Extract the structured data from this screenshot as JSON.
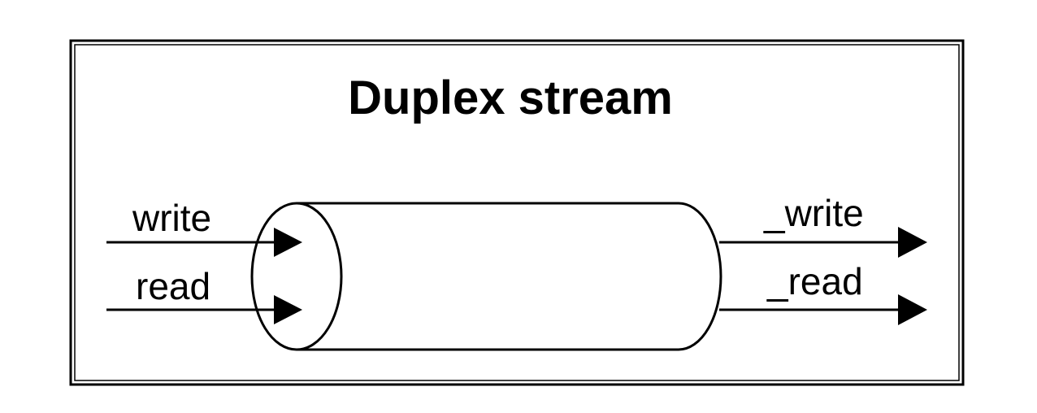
{
  "title": "Duplex stream",
  "inputs": {
    "write": "write",
    "read": "read"
  },
  "outputs": {
    "write": "_write",
    "read": "_read"
  },
  "colors": {
    "stroke": "#000000",
    "background": "#ffffff"
  }
}
